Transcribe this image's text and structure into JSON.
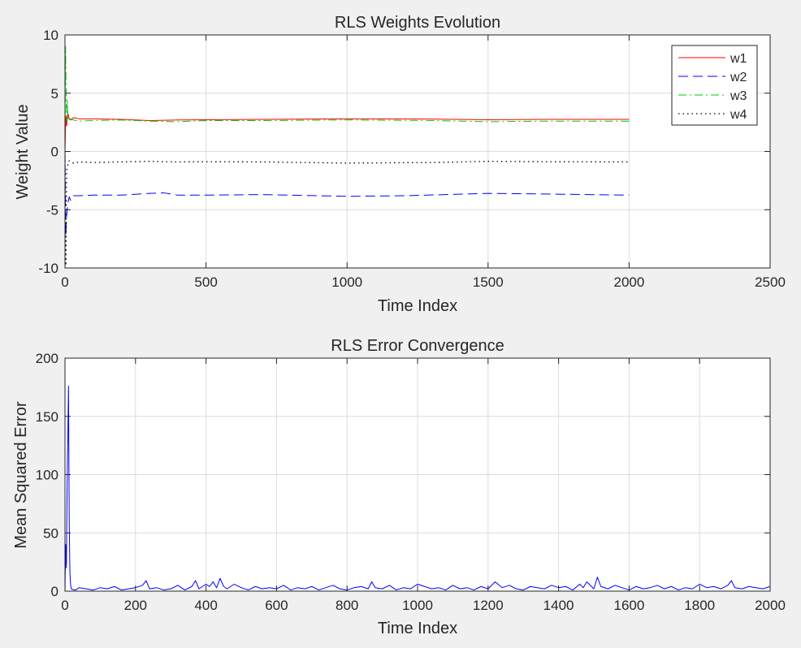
{
  "chart_data": [
    {
      "type": "line",
      "title": "RLS Weights Evolution",
      "xlabel": "Time Index",
      "ylabel": "Weight Value",
      "xlim": [
        0,
        2500
      ],
      "ylim": [
        -10,
        10
      ],
      "xticks": [
        0,
        500,
        1000,
        1500,
        2000,
        2500
      ],
      "yticks": [
        -10,
        -5,
        0,
        5,
        10
      ],
      "xtick_labels": [
        "0",
        "500",
        "1000",
        "1500",
        "2000",
        "2500"
      ],
      "ytick_labels": [
        "-10",
        "-5",
        "0",
        "5",
        "10"
      ],
      "grid": true,
      "legend_position": "top-right",
      "series": [
        {
          "name": "w1",
          "color": "#ff0000",
          "dash": "solid",
          "x": [
            0,
            3,
            6,
            10,
            15,
            20,
            30,
            50,
            100,
            200,
            300,
            400,
            500,
            700,
            1000,
            1300,
            1500,
            1700,
            2000
          ],
          "y": [
            0,
            3.0,
            2.2,
            3.3,
            2.8,
            2.7,
            2.9,
            2.8,
            2.8,
            2.75,
            2.65,
            2.7,
            2.72,
            2.75,
            2.8,
            2.78,
            2.72,
            2.75,
            2.75
          ]
        },
        {
          "name": "w2",
          "color": "#0000ff",
          "dash": "long-dash",
          "x": [
            0,
            3,
            6,
            10,
            15,
            20,
            30,
            50,
            100,
            200,
            300,
            350,
            400,
            500,
            700,
            800,
            1000,
            1200,
            1500,
            1700,
            2000
          ],
          "y": [
            0,
            -7.2,
            -5.5,
            -4.5,
            -3.9,
            -4.2,
            -3.8,
            -3.8,
            -3.75,
            -3.75,
            -3.6,
            -3.55,
            -3.75,
            -3.75,
            -3.7,
            -3.75,
            -3.85,
            -3.8,
            -3.6,
            -3.65,
            -3.75
          ]
        },
        {
          "name": "w3",
          "color": "#00cc00",
          "dash": "dash-dot",
          "x": [
            0,
            2,
            4,
            6,
            8,
            10,
            15,
            20,
            30,
            50,
            100,
            200,
            300,
            400,
            500,
            700,
            1000,
            1300,
            1500,
            1700,
            2000
          ],
          "y": [
            0,
            9.0,
            5.5,
            2.5,
            4.5,
            3.0,
            2.6,
            2.8,
            2.7,
            2.6,
            2.65,
            2.7,
            2.6,
            2.55,
            2.65,
            2.65,
            2.7,
            2.65,
            2.55,
            2.6,
            2.6
          ]
        },
        {
          "name": "w4",
          "color": "#000000",
          "dash": "dotted",
          "x": [
            0,
            3,
            6,
            10,
            15,
            20,
            30,
            50,
            100,
            200,
            300,
            400,
            500,
            700,
            1000,
            1300,
            1500,
            1700,
            2000
          ],
          "y": [
            0,
            -9.8,
            -1.6,
            -1.2,
            -0.8,
            -0.9,
            -1.0,
            -0.9,
            -0.95,
            -0.9,
            -0.85,
            -0.9,
            -0.88,
            -0.9,
            -1.0,
            -0.95,
            -0.85,
            -0.88,
            -0.9
          ]
        }
      ]
    },
    {
      "type": "line",
      "title": "RLS Error Convergence",
      "xlabel": "Time Index",
      "ylabel": "Mean Squared Error",
      "xlim": [
        0,
        2000
      ],
      "ylim": [
        0,
        200
      ],
      "xticks": [
        0,
        200,
        400,
        600,
        800,
        1000,
        1200,
        1400,
        1600,
        1800,
        2000
      ],
      "yticks": [
        0,
        50,
        100,
        150,
        200
      ],
      "xtick_labels": [
        "0",
        "200",
        "400",
        "600",
        "800",
        "1000",
        "1200",
        "1400",
        "1600",
        "1800",
        "2000"
      ],
      "ytick_labels": [
        "0",
        "50",
        "100",
        "150",
        "200"
      ],
      "grid": true,
      "series": [
        {
          "color": "#0000ff",
          "x": [
            0,
            2,
            4,
            6,
            8,
            10,
            12,
            14,
            16,
            18,
            20,
            30,
            40,
            60,
            80,
            100,
            120,
            140,
            160,
            180,
            200,
            220,
            230,
            240,
            260,
            280,
            300,
            320,
            340,
            360,
            370,
            380,
            400,
            410,
            420,
            430,
            440,
            450,
            460,
            480,
            500,
            520,
            540,
            560,
            580,
            600,
            620,
            640,
            660,
            680,
            700,
            720,
            740,
            760,
            780,
            800,
            820,
            840,
            860,
            870,
            880,
            900,
            920,
            940,
            960,
            980,
            1000,
            1020,
            1040,
            1060,
            1080,
            1100,
            1120,
            1140,
            1160,
            1180,
            1200,
            1220,
            1240,
            1260,
            1280,
            1300,
            1320,
            1340,
            1360,
            1380,
            1400,
            1420,
            1440,
            1460,
            1470,
            1480,
            1500,
            1510,
            1520,
            1540,
            1560,
            1580,
            1600,
            1620,
            1640,
            1660,
            1680,
            1700,
            1720,
            1740,
            1760,
            1780,
            1800,
            1820,
            1840,
            1860,
            1880,
            1890,
            1900,
            1920,
            1940,
            1960,
            1980,
            2000
          ],
          "y": [
            0,
            40,
            20,
            90,
            130,
            176,
            60,
            15,
            5,
            2,
            1.5,
            1,
            3,
            2,
            1,
            3,
            2,
            4,
            1,
            2,
            3,
            5,
            9,
            2,
            3,
            1,
            2,
            5,
            1,
            4,
            9,
            2,
            6,
            4,
            8,
            3,
            11,
            4,
            2,
            6,
            3,
            1,
            4,
            2,
            3,
            2,
            5,
            1,
            3,
            2,
            4,
            1,
            3,
            5,
            2,
            1,
            3,
            4,
            2,
            8,
            3,
            2,
            5,
            1,
            3,
            2,
            6,
            4,
            2,
            3,
            1,
            5,
            2,
            3,
            1,
            4,
            2,
            8,
            3,
            5,
            2,
            1,
            4,
            3,
            2,
            5,
            3,
            4,
            1,
            6,
            3,
            8,
            2,
            12,
            4,
            2,
            5,
            3,
            1,
            4,
            2,
            3,
            5,
            2,
            4,
            1,
            3,
            2,
            6,
            3,
            4,
            2,
            5,
            9,
            3,
            2,
            4,
            3,
            2,
            4
          ]
        }
      ]
    }
  ]
}
